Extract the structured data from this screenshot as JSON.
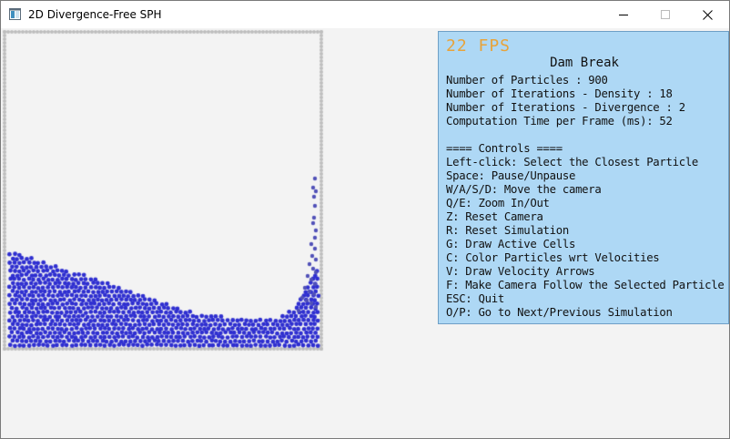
{
  "window": {
    "title": "2D Divergence-Free SPH",
    "icons": {
      "app": "app-window-icon",
      "minimize": "minimize-icon",
      "maximize": "maximize-icon",
      "close": "close-icon"
    }
  },
  "hud": {
    "fps": "22 FPS",
    "scene": "Dam Break",
    "stats": [
      "Number of Particles : 900",
      "Number of Iterations - Density : 18",
      "Number of Iterations - Divergence : 2",
      "Computation Time per Frame (ms): 52"
    ],
    "controls_header": "==== Controls ====",
    "controls": [
      "Left-click: Select the Closest Particle",
      "Space: Pause/Unpause",
      "W/A/S/D: Move the camera",
      "Q/E: Zoom In/Out",
      "Z: Reset Camera",
      "R: Reset Simulation",
      "G: Draw Active Cells",
      "C: Color Particles wrt Velocities",
      "V: Draw Velocity Arrows",
      "F: Make Camera Follow the Selected Particle",
      "ESC: Quit",
      "O/P: Go to Next/Previous Simulation"
    ]
  },
  "colors": {
    "fluid": "#2f2fd0",
    "fluid_splash": "#5050b8",
    "boundary": "#bdbdbd",
    "fps": "#e8a33a",
    "hud_bg": "#aed8f5"
  }
}
